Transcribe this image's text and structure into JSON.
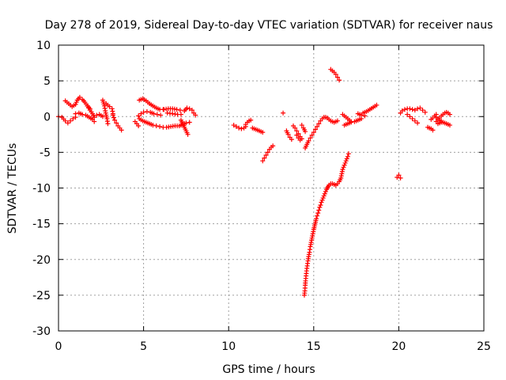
{
  "chart_data": {
    "type": "scatter",
    "title": "Day 278 of 2019, Sidereal Day-to-day VTEC variation (SDTVAR) for receiver naus",
    "xlabel": "GPS time / hours",
    "ylabel": "SDTVAR / TECUs",
    "xlim": [
      0,
      25
    ],
    "ylim": [
      -30,
      10
    ],
    "xticks": [
      "0",
      "5",
      "10",
      "15",
      "20",
      "25"
    ],
    "yticks": [
      "-30",
      "-25",
      "-20",
      "-15",
      "-10",
      "-5",
      "0",
      "5",
      "10"
    ],
    "grid": true,
    "marker": "plus",
    "marker_color": "#ff0000",
    "segments": [
      [
        [
          0.0,
          0.0
        ],
        [
          0.2,
          -0.1
        ],
        [
          0.4,
          -0.6
        ],
        [
          0.55,
          -0.9
        ],
        [
          0.7,
          -0.6
        ],
        [
          0.85,
          -0.3
        ],
        [
          1.0,
          -0.1
        ]
      ],
      [
        [
          0.4,
          2.2
        ],
        [
          0.6,
          1.8
        ],
        [
          0.8,
          1.4
        ],
        [
          1.0,
          1.7
        ],
        [
          1.1,
          2.3
        ],
        [
          1.25,
          2.7
        ],
        [
          1.4,
          2.4
        ],
        [
          1.55,
          2.0
        ],
        [
          1.7,
          1.5
        ],
        [
          1.85,
          1.1
        ]
      ],
      [
        [
          1.0,
          0.4
        ],
        [
          1.2,
          0.5
        ],
        [
          1.4,
          0.3
        ],
        [
          1.6,
          0.2
        ],
        [
          1.8,
          -0.1
        ],
        [
          2.0,
          -0.4
        ],
        [
          2.1,
          -0.7
        ]
      ],
      [
        [
          1.7,
          1.5
        ],
        [
          1.85,
          0.9
        ],
        [
          2.0,
          0.4
        ],
        [
          2.1,
          -0.1
        ],
        [
          2.25,
          0.2
        ],
        [
          2.4,
          0.3
        ],
        [
          2.6,
          0.0
        ]
      ],
      [
        [
          2.6,
          2.3
        ],
        [
          2.7,
          1.5
        ],
        [
          2.75,
          0.8
        ],
        [
          2.8,
          0.2
        ],
        [
          2.85,
          -0.3
        ],
        [
          2.9,
          -1.0
        ]
      ],
      [
        [
          2.8,
          1.8
        ],
        [
          3.0,
          1.4
        ],
        [
          3.15,
          1.1
        ],
        [
          3.2,
          0.4
        ]
      ],
      [
        [
          3.2,
          0.2
        ],
        [
          3.3,
          -0.5
        ],
        [
          3.4,
          -0.9
        ],
        [
          3.5,
          -1.3
        ],
        [
          3.6,
          -1.6
        ],
        [
          3.7,
          -1.9
        ]
      ],
      [
        [
          4.5,
          -0.7
        ],
        [
          4.6,
          -1.0
        ],
        [
          4.7,
          -1.3
        ]
      ],
      [
        [
          4.7,
          0.1
        ],
        [
          4.85,
          0.4
        ],
        [
          5.0,
          0.6
        ],
        [
          5.2,
          0.7
        ],
        [
          5.4,
          0.6
        ],
        [
          5.6,
          0.4
        ],
        [
          5.8,
          0.3
        ],
        [
          6.0,
          0.2
        ]
      ],
      [
        [
          4.75,
          2.3
        ],
        [
          4.95,
          2.5
        ],
        [
          5.15,
          2.2
        ],
        [
          5.35,
          1.8
        ],
        [
          5.55,
          1.5
        ],
        [
          5.75,
          1.2
        ],
        [
          5.95,
          1.0
        ],
        [
          6.15,
          1.0
        ]
      ],
      [
        [
          4.75,
          -0.3
        ],
        [
          4.95,
          -0.6
        ],
        [
          5.15,
          -0.8
        ],
        [
          5.35,
          -1.0
        ],
        [
          5.55,
          -1.2
        ],
        [
          5.75,
          -1.3
        ],
        [
          5.95,
          -1.4
        ],
        [
          6.15,
          -1.5
        ],
        [
          6.35,
          -1.5
        ],
        [
          6.6,
          -1.4
        ],
        [
          6.85,
          -1.3
        ],
        [
          7.1,
          -1.3
        ],
        [
          7.3,
          -1.1
        ],
        [
          7.5,
          -0.9
        ],
        [
          7.7,
          -0.8
        ]
      ],
      [
        [
          6.2,
          1.0
        ],
        [
          6.45,
          1.1
        ],
        [
          6.7,
          1.1
        ],
        [
          6.95,
          1.0
        ],
        [
          7.15,
          0.9
        ]
      ],
      [
        [
          6.4,
          0.5
        ],
        [
          6.7,
          0.4
        ],
        [
          7.0,
          0.3
        ],
        [
          7.2,
          0.3
        ]
      ],
      [
        [
          7.2,
          -0.5
        ],
        [
          7.3,
          -1.0
        ],
        [
          7.4,
          -1.5
        ],
        [
          7.5,
          -2.0
        ],
        [
          7.6,
          -2.5
        ]
      ],
      [
        [
          7.4,
          0.8
        ],
        [
          7.55,
          1.2
        ],
        [
          7.7,
          1.1
        ],
        [
          7.85,
          0.9
        ],
        [
          7.95,
          0.5
        ],
        [
          8.05,
          0.2
        ]
      ],
      [
        [
          10.3,
          -1.2
        ],
        [
          10.45,
          -1.4
        ],
        [
          10.6,
          -1.6
        ],
        [
          10.75,
          -1.7
        ],
        [
          10.9,
          -1.6
        ],
        [
          11.0,
          -1.4
        ]
      ],
      [
        [
          11.0,
          -1.1
        ],
        [
          11.1,
          -0.8
        ],
        [
          11.2,
          -0.6
        ],
        [
          11.3,
          -0.5
        ]
      ],
      [
        [
          11.4,
          -1.6
        ],
        [
          11.6,
          -1.8
        ],
        [
          11.8,
          -2.0
        ],
        [
          12.0,
          -2.2
        ]
      ],
      [
        [
          12.0,
          -6.2
        ],
        [
          12.1,
          -5.8
        ],
        [
          12.2,
          -5.4
        ],
        [
          12.3,
          -5.0
        ],
        [
          12.4,
          -4.6
        ],
        [
          12.5,
          -4.3
        ],
        [
          12.6,
          -4.1
        ]
      ],
      [
        [
          13.2,
          0.5
        ]
      ],
      [
        [
          13.4,
          -2.0
        ],
        [
          13.5,
          -2.5
        ],
        [
          13.6,
          -2.9
        ],
        [
          13.7,
          -3.2
        ]
      ],
      [
        [
          13.8,
          -1.3
        ],
        [
          13.9,
          -1.6
        ],
        [
          14.0,
          -2.0
        ],
        [
          14.1,
          -2.4
        ],
        [
          14.2,
          -2.8
        ],
        [
          14.3,
          -3.1
        ]
      ],
      [
        [
          14.0,
          -2.6
        ],
        [
          14.1,
          -3.0
        ],
        [
          14.2,
          -3.3
        ]
      ],
      [
        [
          14.3,
          -1.2
        ],
        [
          14.4,
          -1.6
        ],
        [
          14.5,
          -2.1
        ]
      ],
      [
        [
          14.5,
          -4.4
        ],
        [
          14.6,
          -3.9
        ],
        [
          14.7,
          -3.4
        ],
        [
          14.8,
          -3.0
        ],
        [
          14.9,
          -2.6
        ],
        [
          15.0,
          -2.2
        ],
        [
          15.1,
          -1.8
        ],
        [
          15.2,
          -1.4
        ],
        [
          15.3,
          -1.0
        ],
        [
          15.4,
          -0.6
        ],
        [
          15.5,
          -0.3
        ],
        [
          15.6,
          -0.1
        ],
        [
          15.7,
          -0.1
        ],
        [
          15.8,
          -0.2
        ],
        [
          15.9,
          -0.4
        ],
        [
          16.0,
          -0.6
        ],
        [
          16.1,
          -0.7
        ],
        [
          16.2,
          -0.8
        ],
        [
          16.3,
          -0.7
        ],
        [
          16.4,
          -0.6
        ]
      ],
      [
        [
          14.45,
          -25.0
        ],
        [
          14.48,
          -24.4
        ],
        [
          14.5,
          -23.6
        ],
        [
          14.52,
          -23.0
        ],
        [
          14.55,
          -22.3
        ],
        [
          14.58,
          -21.6
        ],
        [
          14.62,
          -20.9
        ],
        [
          14.66,
          -20.2
        ],
        [
          14.7,
          -19.6
        ],
        [
          14.75,
          -19.0
        ],
        [
          14.8,
          -18.2
        ],
        [
          14.85,
          -17.6
        ],
        [
          14.9,
          -17.0
        ],
        [
          14.95,
          -16.4
        ],
        [
          15.0,
          -15.8
        ],
        [
          15.05,
          -15.3
        ],
        [
          15.1,
          -14.8
        ],
        [
          15.15,
          -14.3
        ],
        [
          15.2,
          -13.9
        ],
        [
          15.25,
          -13.5
        ],
        [
          15.3,
          -13.1
        ],
        [
          15.35,
          -12.7
        ],
        [
          15.4,
          -12.4
        ],
        [
          15.45,
          -12.0
        ],
        [
          15.5,
          -11.7
        ],
        [
          15.55,
          -11.4
        ],
        [
          15.6,
          -11.1
        ],
        [
          15.65,
          -10.8
        ],
        [
          15.7,
          -10.5
        ],
        [
          15.75,
          -10.2
        ],
        [
          15.8,
          -10.0
        ],
        [
          15.85,
          -9.8
        ],
        [
          15.9,
          -9.6
        ],
        [
          16.0,
          -9.4
        ],
        [
          16.1,
          -9.4
        ],
        [
          16.2,
          -9.5
        ],
        [
          16.3,
          -9.6
        ],
        [
          16.4,
          -9.4
        ],
        [
          16.5,
          -9.1
        ],
        [
          16.6,
          -8.6
        ],
        [
          16.65,
          -8.0
        ],
        [
          16.7,
          -7.4
        ],
        [
          16.8,
          -6.8
        ],
        [
          16.9,
          -6.2
        ],
        [
          17.0,
          -5.6
        ],
        [
          17.05,
          -5.2
        ]
      ],
      [
        [
          16.0,
          6.6
        ],
        [
          16.1,
          6.4
        ],
        [
          16.2,
          6.2
        ],
        [
          16.3,
          5.9
        ],
        [
          16.4,
          5.5
        ],
        [
          16.5,
          5.1
        ]
      ],
      [
        [
          16.7,
          0.3
        ],
        [
          16.8,
          0.1
        ],
        [
          16.9,
          -0.1
        ],
        [
          17.0,
          -0.3
        ],
        [
          17.1,
          -0.5
        ],
        [
          17.2,
          -0.7
        ]
      ],
      [
        [
          16.8,
          -1.2
        ],
        [
          17.0,
          -1.0
        ],
        [
          17.2,
          -0.8
        ],
        [
          17.4,
          -0.7
        ],
        [
          17.6,
          -0.5
        ],
        [
          17.8,
          -0.3
        ]
      ],
      [
        [
          17.6,
          0.4
        ],
        [
          17.8,
          0.2
        ],
        [
          18.0,
          0.1
        ]
      ],
      [
        [
          17.9,
          0.5
        ],
        [
          18.1,
          0.7
        ],
        [
          18.3,
          1.0
        ],
        [
          18.5,
          1.3
        ],
        [
          18.7,
          1.6
        ]
      ],
      [
        [
          19.9,
          -8.5
        ],
        [
          20.0,
          -8.2
        ],
        [
          20.1,
          -8.6
        ]
      ],
      [
        [
          20.1,
          0.5
        ],
        [
          20.2,
          0.8
        ],
        [
          20.35,
          1.0
        ],
        [
          20.5,
          1.1
        ],
        [
          20.65,
          1.1
        ],
        [
          20.8,
          1.0
        ],
        [
          20.95,
          0.9
        ],
        [
          21.1,
          1.1
        ],
        [
          21.25,
          1.2
        ],
        [
          21.4,
          0.9
        ],
        [
          21.55,
          0.6
        ]
      ],
      [
        [
          20.5,
          0.3
        ],
        [
          20.65,
          0.0
        ],
        [
          20.8,
          -0.3
        ],
        [
          20.95,
          -0.6
        ],
        [
          21.1,
          -0.9
        ]
      ],
      [
        [
          21.7,
          -1.5
        ],
        [
          21.9,
          -1.7
        ],
        [
          22.0,
          -1.9
        ]
      ],
      [
        [
          21.9,
          -0.4
        ],
        [
          22.0,
          -0.2
        ],
        [
          22.1,
          0.1
        ],
        [
          22.2,
          0.3
        ]
      ],
      [
        [
          22.2,
          -0.7
        ],
        [
          22.3,
          -0.5
        ],
        [
          22.4,
          -0.2
        ],
        [
          22.5,
          0.1
        ],
        [
          22.6,
          0.3
        ],
        [
          22.7,
          0.5
        ],
        [
          22.8,
          0.6
        ],
        [
          22.9,
          0.5
        ],
        [
          23.0,
          0.3
        ]
      ],
      [
        [
          22.2,
          -0.1
        ],
        [
          22.4,
          -0.5
        ],
        [
          22.6,
          -0.8
        ],
        [
          22.8,
          -1.0
        ],
        [
          23.0,
          -1.2
        ]
      ],
      [
        [
          22.3,
          -1.0
        ],
        [
          22.5,
          -0.8
        ]
      ]
    ]
  }
}
